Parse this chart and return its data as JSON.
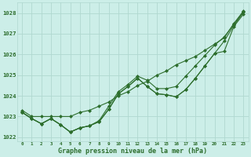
{
  "background_color": "#cceee8",
  "grid_color": "#b0d8d0",
  "line_color": "#2d6e2d",
  "xlabel": "Graphe pression niveau de la mer (hPa)",
  "xlim": [
    -0.5,
    23.5
  ],
  "ylim": [
    1021.8,
    1028.5
  ],
  "yticks": [
    1022,
    1023,
    1024,
    1025,
    1026,
    1027,
    1028
  ],
  "xticks": [
    0,
    1,
    2,
    3,
    4,
    5,
    6,
    7,
    8,
    9,
    10,
    11,
    12,
    13,
    14,
    15,
    16,
    17,
    18,
    19,
    20,
    21,
    22,
    23
  ],
  "series": [
    [
      1023.3,
      1023.0,
      1023.0,
      1023.0,
      1023.0,
      1023.0,
      1023.2,
      1023.3,
      1023.5,
      1023.7,
      1024.0,
      1024.2,
      1024.5,
      1024.7,
      1025.0,
      1025.2,
      1025.5,
      1025.7,
      1025.9,
      1026.2,
      1026.5,
      1026.8,
      1027.5,
      1028.1
    ],
    [
      1023.2,
      1022.9,
      1022.65,
      1022.9,
      1022.6,
      1022.25,
      1022.45,
      1022.55,
      1022.75,
      1023.35,
      1024.1,
      1024.45,
      1024.85,
      1024.45,
      1024.1,
      1024.05,
      1023.95,
      1024.3,
      1024.85,
      1025.45,
      1026.05,
      1026.15,
      1027.35,
      1027.95
    ],
    [
      1023.2,
      1022.9,
      1022.65,
      1022.9,
      1022.6,
      1022.25,
      1022.45,
      1022.55,
      1022.75,
      1023.35,
      1024.1,
      1024.45,
      1024.85,
      1024.45,
      1024.1,
      1024.05,
      1023.95,
      1024.3,
      1024.85,
      1025.45,
      1026.05,
      1026.65,
      1027.4,
      1028.05
    ],
    [
      1023.2,
      1022.9,
      1022.65,
      1022.9,
      1022.6,
      1022.25,
      1022.45,
      1022.55,
      1022.8,
      1023.5,
      1024.2,
      1024.55,
      1024.95,
      1024.75,
      1024.35,
      1024.35,
      1024.45,
      1024.95,
      1025.45,
      1025.95,
      1026.45,
      1026.85,
      1027.45,
      1028.05
    ]
  ]
}
